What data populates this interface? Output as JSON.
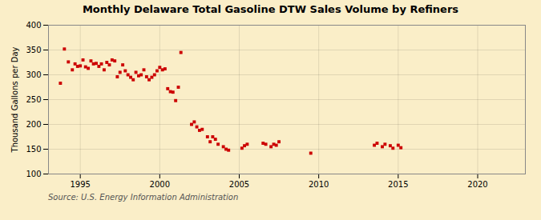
{
  "chart_data": {
    "type": "scatter",
    "title": "Monthly Delaware Total Gasoline DTW Sales Volume by Refiners",
    "ylabel": "Thousand Gallons per Day",
    "source": "Source: U.S. Energy Information Administration",
    "color": "#cc0000",
    "marker": "square",
    "grid": true,
    "xlim": [
      1993.0,
      2023.0
    ],
    "ylim": [
      100,
      400
    ],
    "xticks": [
      1995,
      2000,
      2005,
      2010,
      2015,
      2020
    ],
    "yticks": [
      100,
      150,
      200,
      250,
      300,
      350,
      400
    ],
    "x": [
      1993.75,
      1994.0,
      1994.25,
      1994.5,
      1994.67,
      1994.83,
      1995.0,
      1995.17,
      1995.33,
      1995.5,
      1995.67,
      1995.83,
      1996.0,
      1996.17,
      1996.33,
      1996.5,
      1996.67,
      1996.83,
      1997.0,
      1997.17,
      1997.33,
      1997.5,
      1997.67,
      1997.83,
      1998.0,
      1998.17,
      1998.33,
      1998.5,
      1998.67,
      1998.83,
      1999.0,
      1999.17,
      1999.33,
      1999.5,
      1999.67,
      1999.83,
      2000.0,
      2000.17,
      2000.33,
      2000.5,
      2000.67,
      2000.83,
      2001.0,
      2001.17,
      2001.33,
      2002.0,
      2002.17,
      2002.33,
      2002.5,
      2002.67,
      2003.0,
      2003.17,
      2003.33,
      2003.5,
      2003.67,
      2004.0,
      2004.17,
      2004.33,
      2005.17,
      2005.33,
      2005.5,
      2006.5,
      2006.67,
      2007.0,
      2007.17,
      2007.33,
      2007.5,
      2009.5,
      2013.5,
      2013.67,
      2014.0,
      2014.17,
      2014.5,
      2014.67,
      2015.0,
      2015.17
    ],
    "values": [
      283,
      352,
      326,
      310,
      322,
      317,
      318,
      330,
      316,
      313,
      328,
      322,
      323,
      317,
      322,
      310,
      325,
      320,
      330,
      328,
      296,
      305,
      320,
      308,
      300,
      295,
      290,
      305,
      298,
      300,
      310,
      296,
      290,
      295,
      300,
      308,
      315,
      310,
      312,
      272,
      266,
      265,
      248,
      275,
      345,
      200,
      205,
      195,
      188,
      190,
      175,
      165,
      175,
      170,
      160,
      155,
      150,
      148,
      152,
      157,
      160,
      162,
      160,
      155,
      160,
      158,
      165,
      142,
      158,
      162,
      155,
      160,
      157,
      152,
      158,
      153
    ]
  }
}
